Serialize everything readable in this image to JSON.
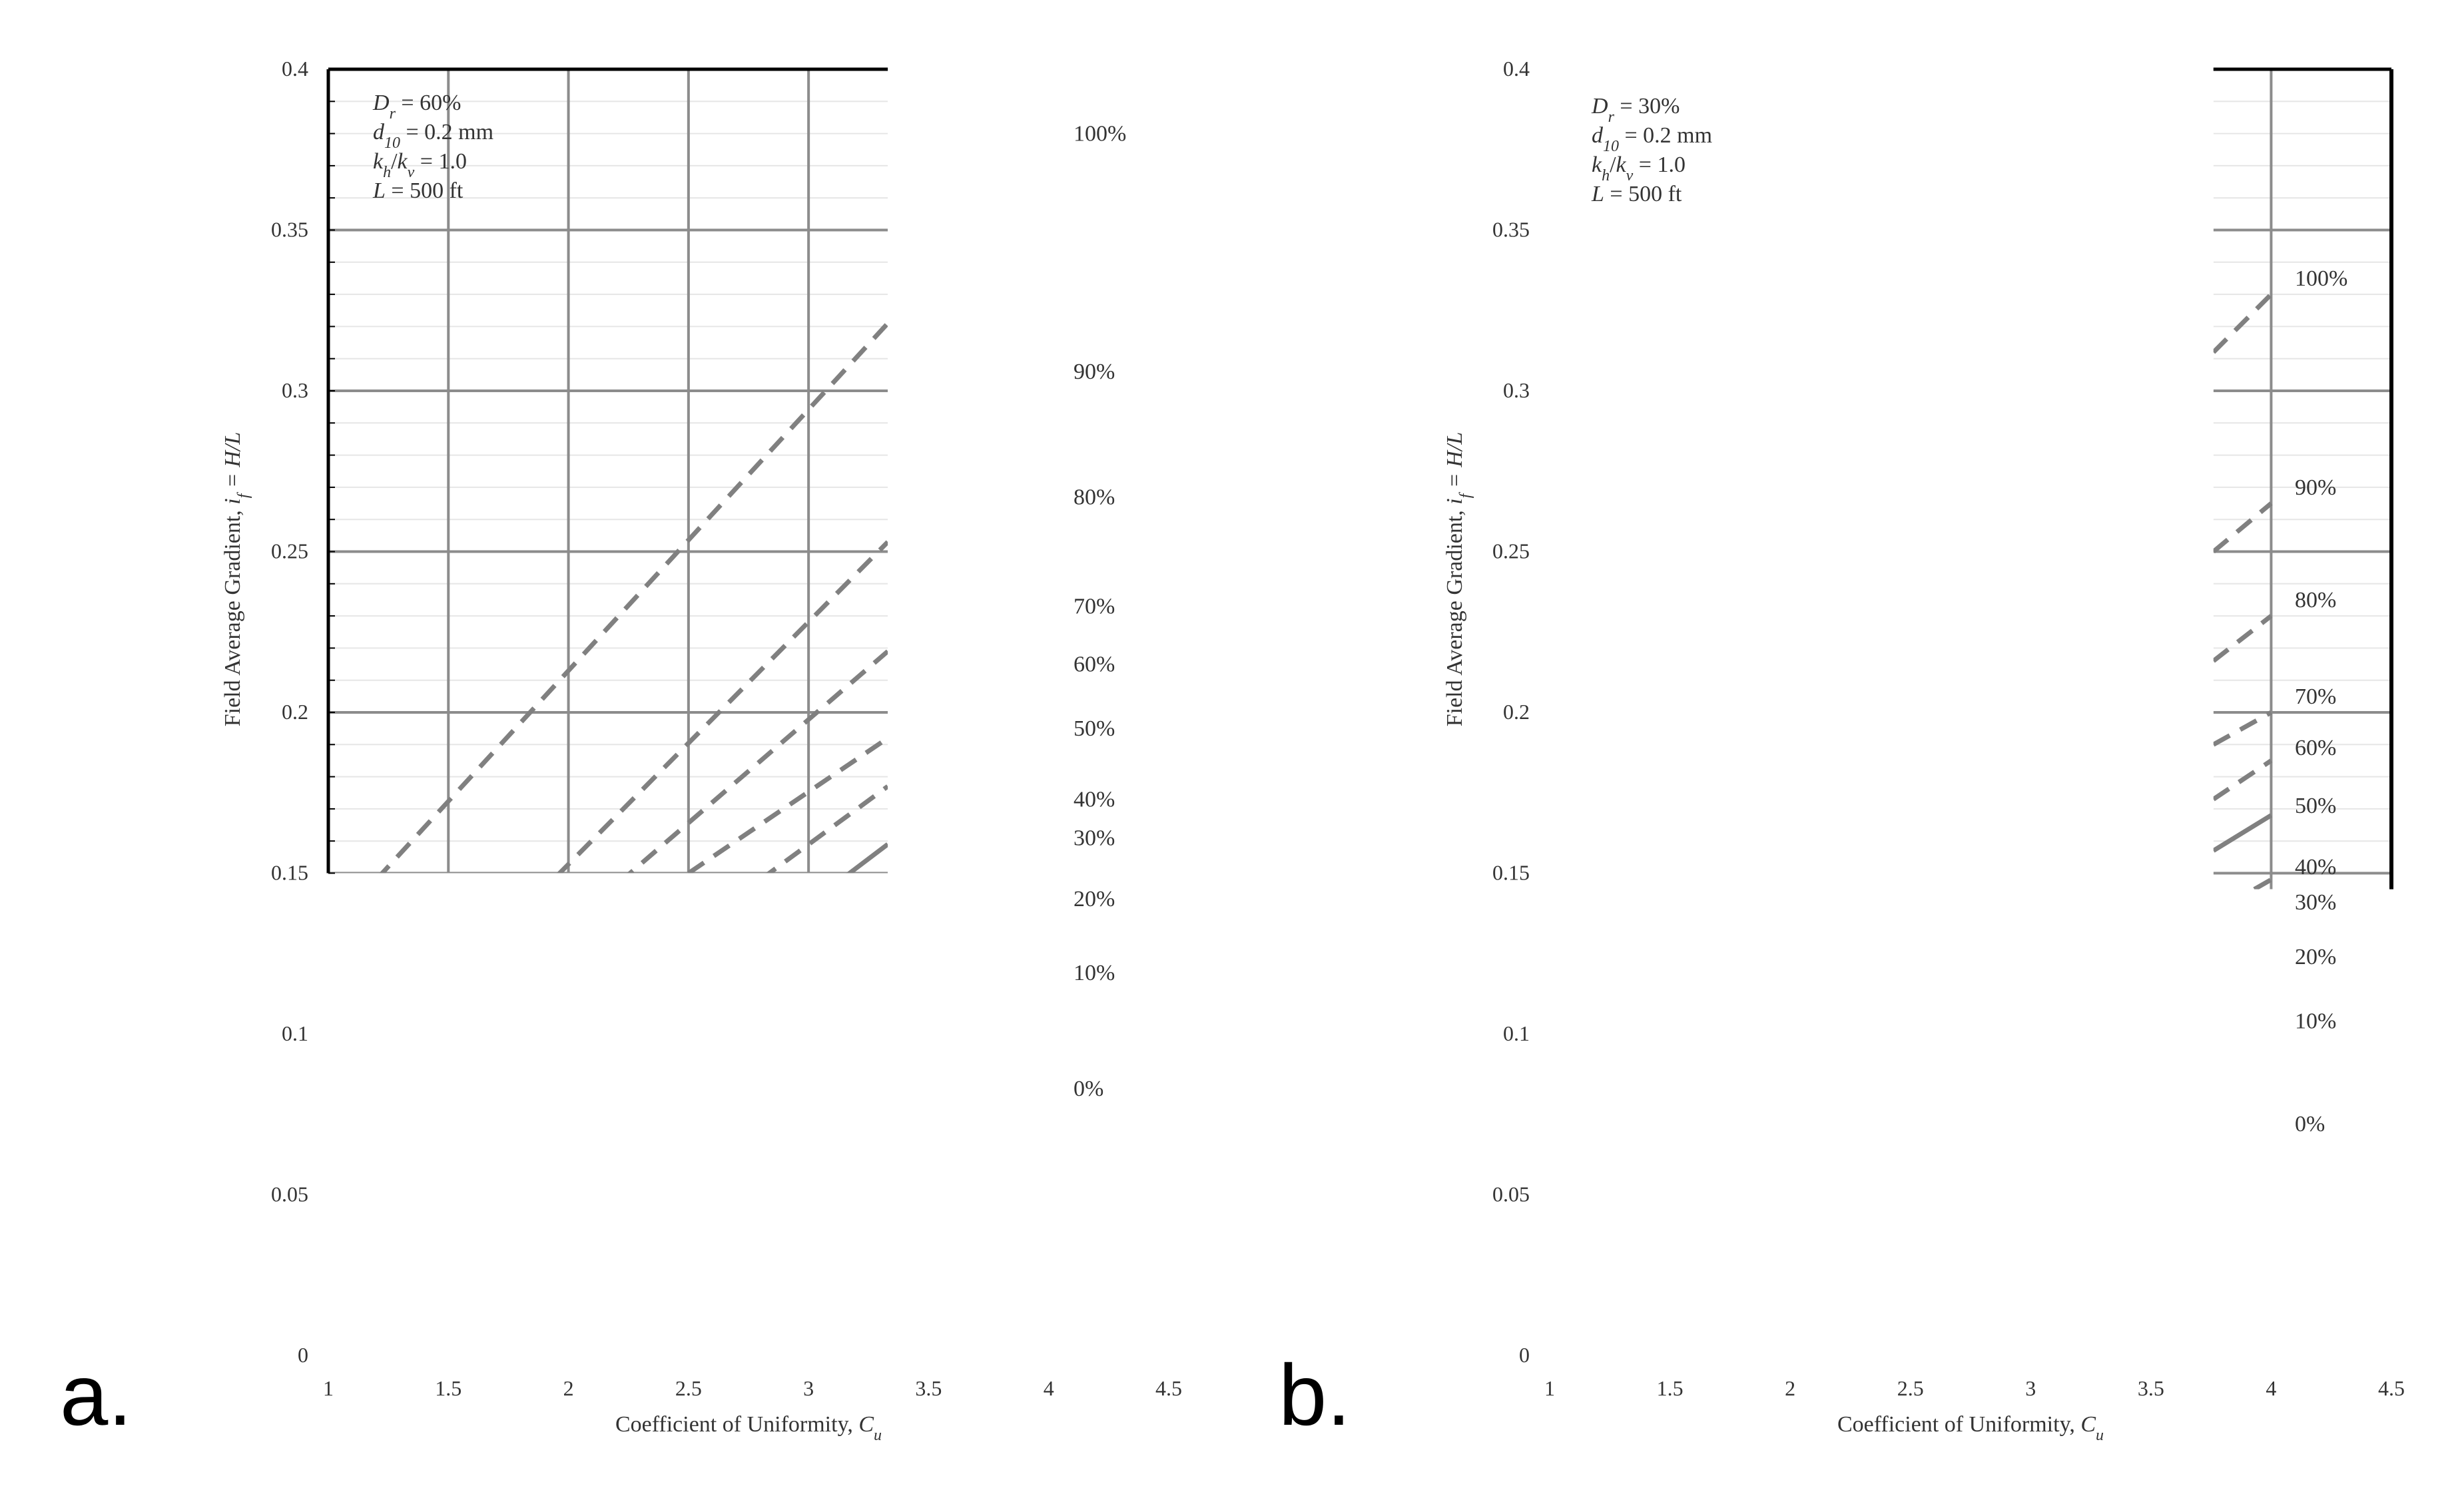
{
  "chart_data": [
    {
      "type": "line",
      "panel_label": "a.",
      "xlabel": "Coefficient of Uniformity, ",
      "xlabel_var": "C",
      "xlabel_sub": "u",
      "ylabel": "Field Average Gradient, ",
      "ylabel_var": "i",
      "ylabel_sub": "f",
      "ylabel_tail": " = H/L",
      "xlim": [
        1,
        4.5
      ],
      "ylim": [
        0,
        0.4
      ],
      "x_ticks": [
        "1",
        "1.5",
        "2",
        "2.5",
        "3",
        "3.5",
        "4",
        "4.5"
      ],
      "y_ticks": [
        "0",
        "0.05",
        "0.1",
        "0.15",
        "0.2",
        "0.25",
        "0.3",
        "0.35",
        "0.4"
      ],
      "grid": true,
      "annotation": [
        {
          "var": "D",
          "sub": "r",
          "rest": " = 60%"
        },
        {
          "var": "d",
          "sub": "10",
          "rest": " = 0.2 mm"
        },
        {
          "var": "k",
          "sub": "h",
          "mid": "/",
          "var2": "k",
          "sub2": "v",
          "rest": " = 1.0"
        },
        {
          "var": "L",
          "sub": "",
          "rest": " = 500 ft"
        }
      ],
      "visible_x_range": [
        1,
        3.33
      ],
      "visible_y_range": [
        0.15,
        0.4
      ],
      "series": [
        {
          "name": "100%",
          "style": "dashed",
          "x": [
            1.2,
            3.33
          ],
          "y": [
            0.148,
            0.321
          ]
        },
        {
          "name": "90%",
          "style": "dashed",
          "x": [
            1.95,
            3.33
          ],
          "y": [
            0.149,
            0.253
          ]
        },
        {
          "name": "80%",
          "style": "dashed",
          "x": [
            2.21,
            3.33
          ],
          "y": [
            0.147,
            0.219
          ]
        },
        {
          "name": "70%",
          "style": "dashed",
          "x": [
            2.5,
            3.33
          ],
          "y": [
            0.15,
            0.192
          ]
        },
        {
          "name": "60%",
          "style": "dashed",
          "x": [
            2.8,
            3.33
          ],
          "y": [
            0.148,
            0.177
          ]
        },
        {
          "name": "50%",
          "style": "solid",
          "x": [
            3.1,
            3.33
          ],
          "y": [
            0.146,
            0.159
          ]
        }
      ],
      "end_labels": [
        {
          "text": "100%",
          "y": 0.38
        },
        {
          "text": "90%",
          "y": 0.306
        },
        {
          "text": "80%",
          "y": 0.267
        },
        {
          "text": "70%",
          "y": 0.233
        },
        {
          "text": "60%",
          "y": 0.215
        },
        {
          "text": "50%",
          "y": 0.195
        },
        {
          "text": "40%",
          "y": 0.173
        },
        {
          "text": "30%",
          "y": 0.161
        },
        {
          "text": "20%",
          "y": 0.142
        },
        {
          "text": "10%",
          "y": 0.119
        },
        {
          "text": "0%",
          "y": 0.083
        }
      ]
    },
    {
      "type": "line",
      "panel_label": "b.",
      "xlabel": "Coefficient of Uniformity, ",
      "xlabel_var": "C",
      "xlabel_sub": "u",
      "ylabel": "Field Average Gradient, ",
      "ylabel_var": "i",
      "ylabel_sub": "f",
      "ylabel_tail": " = H/L",
      "xlim": [
        1,
        4.5
      ],
      "ylim": [
        0,
        0.4
      ],
      "x_ticks": [
        "1",
        "1.5",
        "2",
        "2.5",
        "3",
        "3.5",
        "4",
        "4.5"
      ],
      "y_ticks": [
        "0",
        "0.05",
        "0.1",
        "0.15",
        "0.2",
        "0.25",
        "0.3",
        "0.35",
        "0.4"
      ],
      "grid": true,
      "annotation": [
        {
          "var": "D",
          "sub": "r",
          "rest": " = 30%"
        },
        {
          "var": "d",
          "sub": "10",
          "rest": " = 0.2 mm"
        },
        {
          "var": "k",
          "sub": "h",
          "mid": "/",
          "var2": "k",
          "sub2": "v",
          "rest": " = 1.0"
        },
        {
          "var": "L",
          "sub": "",
          "rest": " = 500 ft"
        }
      ],
      "visible_x_range": [
        3.76,
        4.5
      ],
      "visible_y_range": [
        0.145,
        0.4
      ],
      "series": [
        {
          "name": "100%",
          "style": "dashed",
          "x": [
            3.76,
            4.0
          ],
          "y": [
            0.312,
            0.33
          ]
        },
        {
          "name": "90%",
          "style": "dashed",
          "x": [
            3.76,
            4.0
          ],
          "y": [
            0.25,
            0.265
          ]
        },
        {
          "name": "80%",
          "style": "dashed",
          "x": [
            3.76,
            4.0
          ],
          "y": [
            0.216,
            0.23
          ]
        },
        {
          "name": "70%",
          "style": "dashed",
          "x": [
            3.76,
            4.0
          ],
          "y": [
            0.19,
            0.2
          ]
        },
        {
          "name": "60%",
          "style": "dashed",
          "x": [
            3.76,
            4.0
          ],
          "y": [
            0.173,
            0.185
          ]
        },
        {
          "name": "50%",
          "style": "solid",
          "x": [
            3.76,
            4.0
          ],
          "y": [
            0.157,
            0.168
          ]
        },
        {
          "name": "40%",
          "style": "dashed",
          "x": [
            3.93,
            4.0
          ],
          "y": [
            0.145,
            0.148
          ]
        }
      ],
      "end_labels": [
        {
          "text": "100%",
          "y": 0.335
        },
        {
          "text": "90%",
          "y": 0.27
        },
        {
          "text": "80%",
          "y": 0.235
        },
        {
          "text": "70%",
          "y": 0.205
        },
        {
          "text": "60%",
          "y": 0.189
        },
        {
          "text": "50%",
          "y": 0.171
        },
        {
          "text": "40%",
          "y": 0.152
        },
        {
          "text": "30%",
          "y": 0.141
        },
        {
          "text": "20%",
          "y": 0.124
        },
        {
          "text": "10%",
          "y": 0.104
        },
        {
          "text": "0%",
          "y": 0.072
        }
      ]
    }
  ],
  "colors": {
    "grid_major": "#8c8c8c",
    "grid_minor": "#e6e6e6",
    "series": "#808080",
    "axis": "#000000",
    "text": "#333333"
  }
}
